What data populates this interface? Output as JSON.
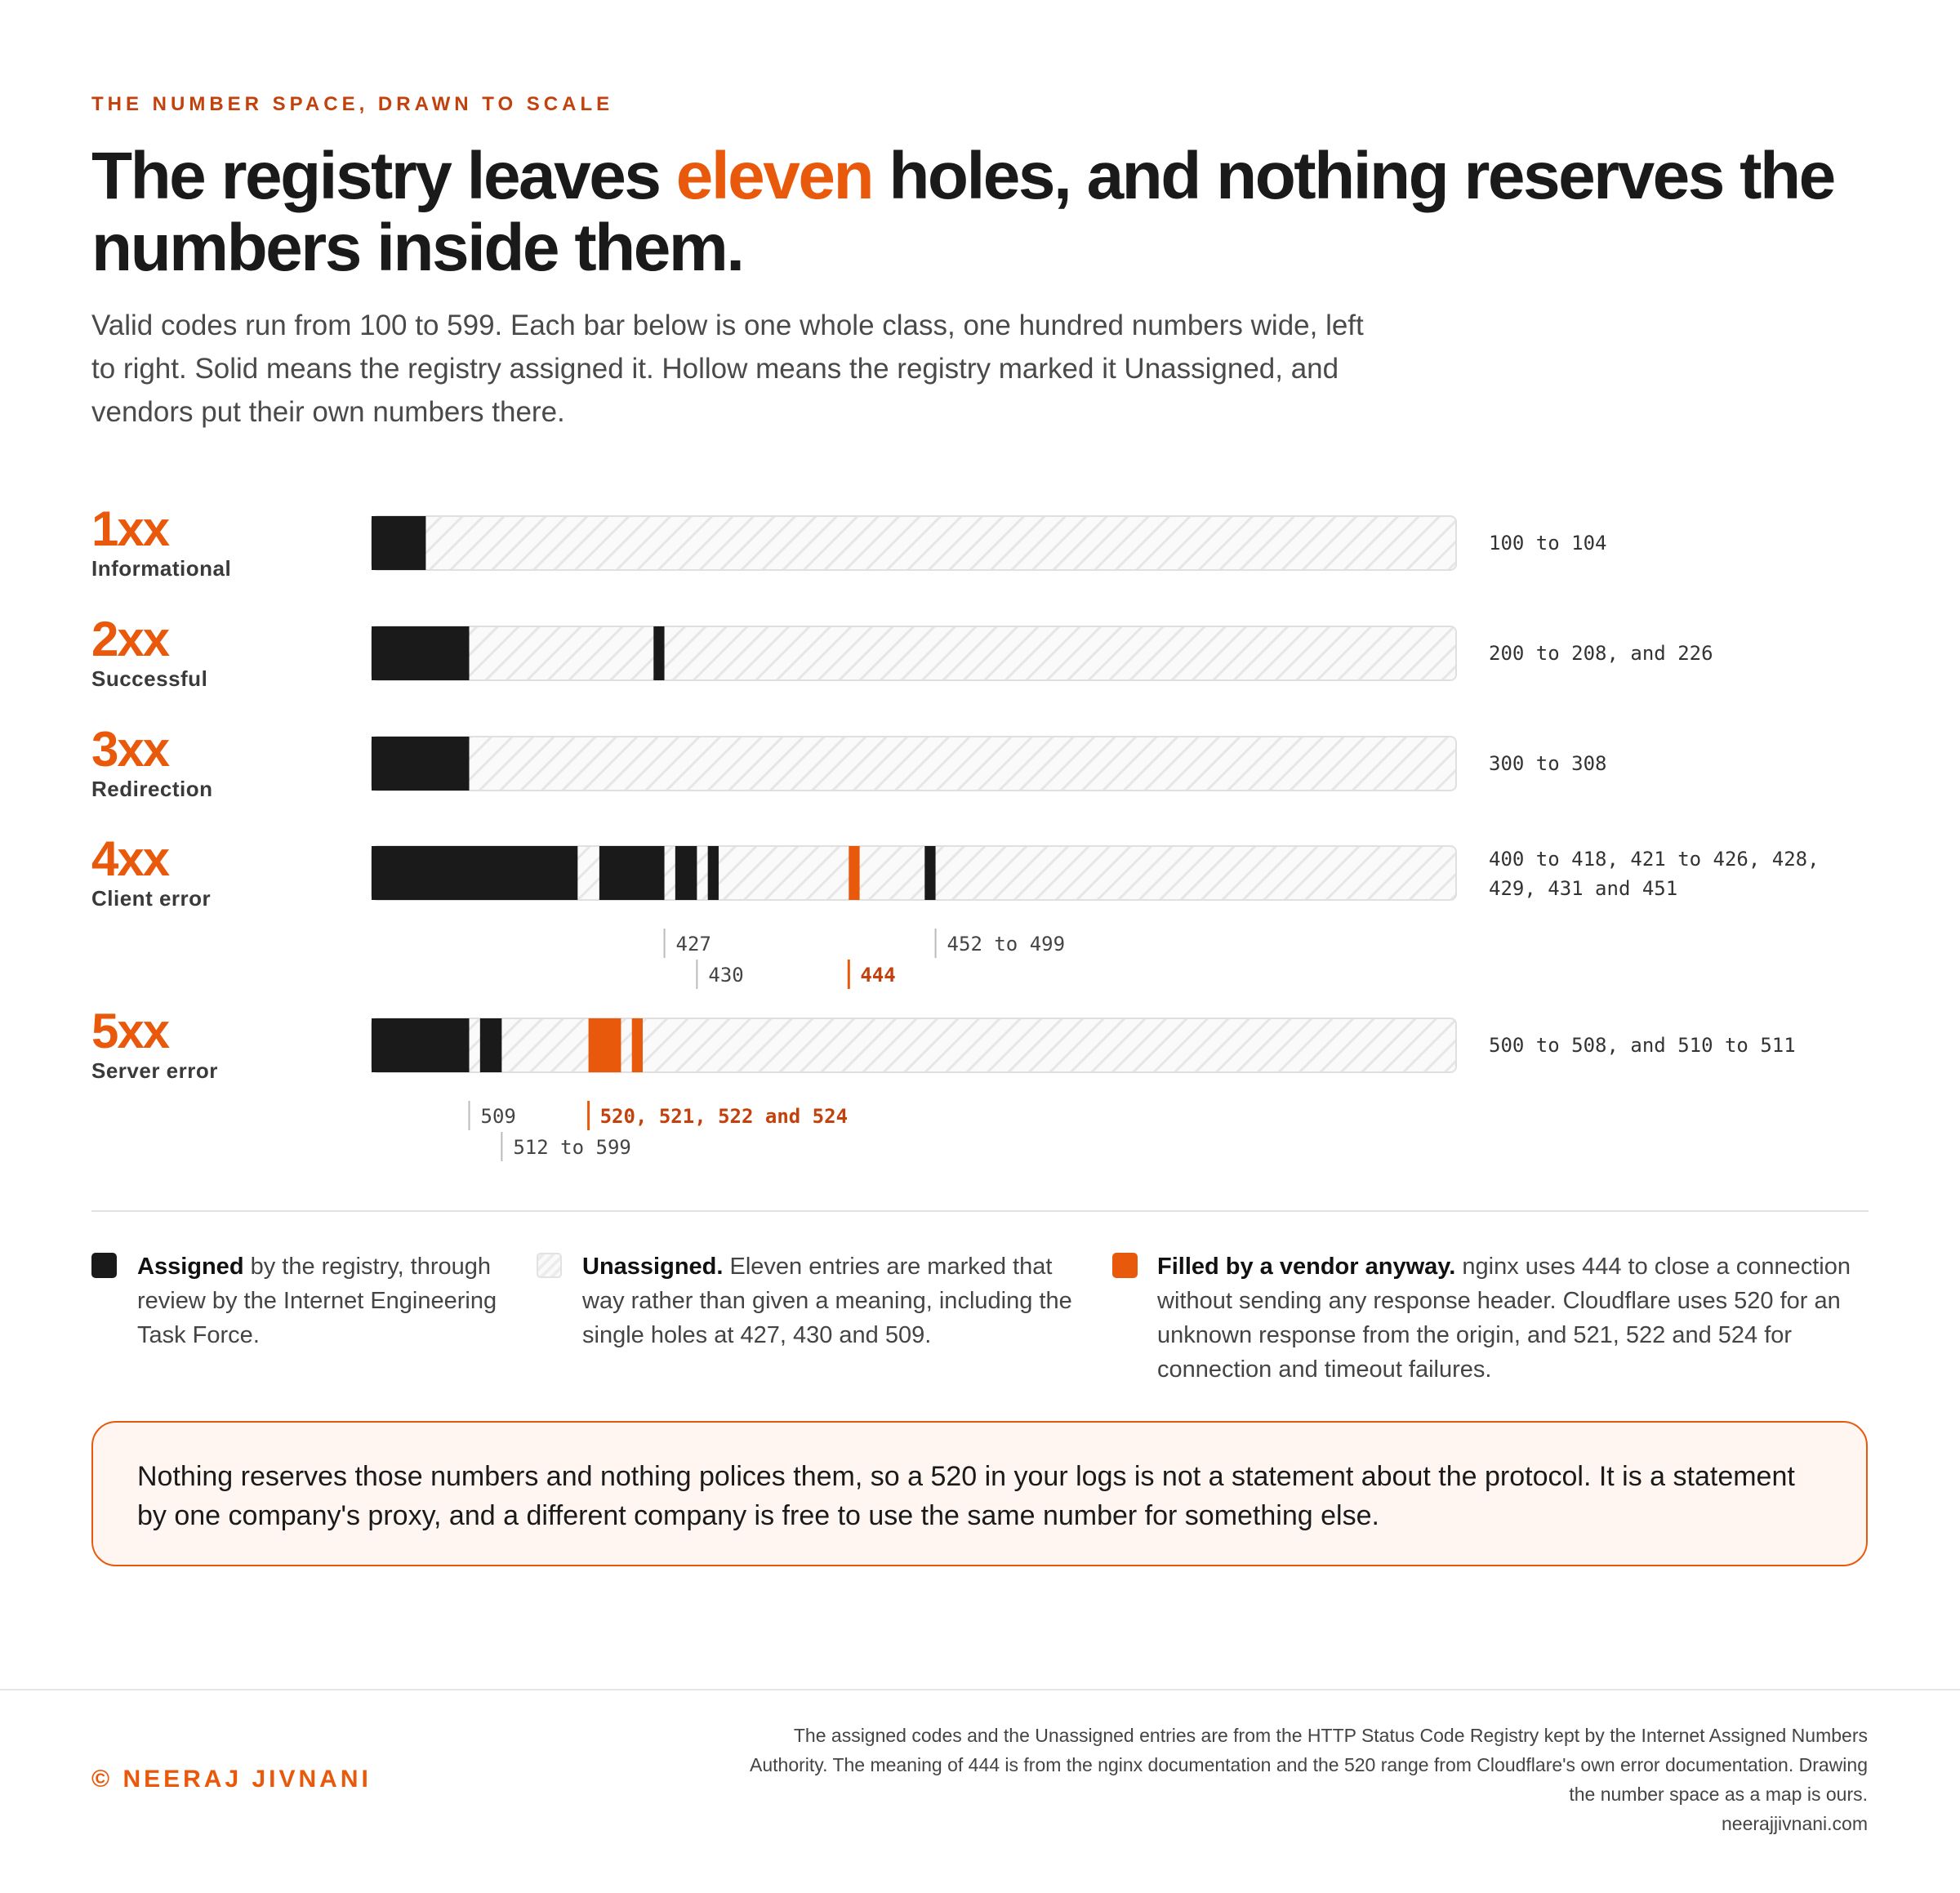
{
  "header": {
    "kicker": "THE NUMBER SPACE, DRAWN TO SCALE",
    "title": [
      "The registry leaves ",
      "eleven",
      " holes, and nothing reserves the numbers inside them."
    ],
    "subtitle": "Valid codes run from 100 to 599. Each bar below is one whole class, one hundred numbers wide, left to right. Solid means the registry assigned it. Hollow means the registry marked it Unassigned, and vendors put their own numbers there."
  },
  "chart_data": {
    "type": "range-map",
    "colors": {
      "assigned": "#1a1a1a",
      "vendor": "#e8590c"
    },
    "rows": [
      {
        "name": "1xx",
        "description": "Informational",
        "summary": "100 to 104",
        "xlim": [
          100,
          200
        ],
        "segments": [
          {
            "from": 100,
            "to": 104,
            "kind": "assigned"
          }
        ]
      },
      {
        "name": "2xx",
        "description": "Successful",
        "summary": "200 to 208, and 226",
        "xlim": [
          200,
          300
        ],
        "segments": [
          {
            "from": 200,
            "to": 208,
            "kind": "assigned"
          },
          {
            "from": 226,
            "to": 226,
            "kind": "assigned"
          }
        ]
      },
      {
        "name": "3xx",
        "description": "Redirection",
        "summary": "300 to 308",
        "xlim": [
          300,
          400
        ],
        "segments": [
          {
            "from": 300,
            "to": 308,
            "kind": "assigned"
          }
        ]
      },
      {
        "name": "4xx",
        "description": "Client error",
        "summary": "400 to 418, 421 to 426, 428, 429, 431 and 451",
        "xlim": [
          400,
          500
        ],
        "segments": [
          {
            "from": 400,
            "to": 418,
            "kind": "assigned"
          },
          {
            "from": 421,
            "to": 426,
            "kind": "assigned"
          },
          {
            "from": 428,
            "to": 429,
            "kind": "assigned"
          },
          {
            "from": 431,
            "to": 431,
            "kind": "assigned"
          },
          {
            "from": 444,
            "to": 444,
            "kind": "vendor"
          },
          {
            "from": 451,
            "to": 451,
            "kind": "assigned"
          }
        ],
        "notes": [
          427,
          430,
          444,
          {
            "value": 452,
            "label": "452 to 499"
          }
        ]
      },
      {
        "name": "5xx",
        "description": "Server error",
        "summary": "500 to 508, and 510 to 511",
        "xlim": [
          500,
          600
        ],
        "segments": [
          {
            "from": 500,
            "to": 508,
            "kind": "assigned"
          },
          {
            "from": 510,
            "to": 511,
            "kind": "assigned"
          },
          {
            "from": 520,
            "to": 522,
            "kind": "vendor"
          },
          {
            "from": 524,
            "to": 524,
            "kind": "vendor"
          }
        ],
        "notes": [
          509,
          {
            "value": 512,
            "label": "512 to 599"
          },
          {
            "value": 520,
            "label": "520, 521, 522 and 524"
          }
        ]
      }
    ]
  },
  "legend": [
    {
      "lead": "Assigned",
      "text": " by the registry, through review by the Internet Engineering Task Force."
    },
    {
      "lead": "Unassigned.",
      "text": " Eleven entries are marked that way rather than given a meaning, including the single holes at 427, 430 and 509."
    },
    {
      "lead": "Filled by a vendor anyway.",
      "text": " nginx uses 444 to close a connection without sending any response header. Cloudflare uses 520 for an unknown response from the origin, and 521, 522 and 524 for connection and timeout failures."
    }
  ],
  "callout": "Nothing reserves those numbers and nothing polices them, so a 520 in your logs is not a statement about the protocol. It is a statement by one company's proxy, and a different company is free to use the same number for something else.",
  "footer": {
    "author": "© NEERAJ JIVNANI",
    "source": "The assigned codes and the Unassigned entries are from the HTTP Status Code Registry kept by the Internet Assigned Numbers Authority. The meaning of 444 is from the nginx documentation and the 520 range from Cloudflare's own error documentation. Drawing the number space as a map is ours.",
    "url": "neerajjivnani.com"
  }
}
